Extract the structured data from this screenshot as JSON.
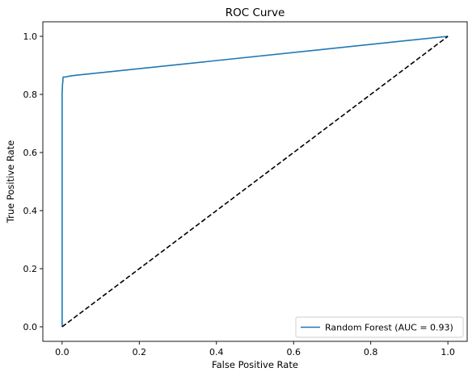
{
  "chart_data": {
    "type": "line",
    "title": "ROC Curve",
    "xlabel": "False Positive Rate",
    "ylabel": "True Positive Rate",
    "xlim": [
      -0.05,
      1.05
    ],
    "ylim": [
      -0.05,
      1.05
    ],
    "xticks": [
      0.0,
      0.2,
      0.4,
      0.6,
      0.8,
      1.0
    ],
    "yticks": [
      0.0,
      0.2,
      0.4,
      0.6,
      0.8,
      1.0
    ],
    "xtick_labels": [
      "0.0",
      "0.2",
      "0.4",
      "0.6",
      "0.8",
      "1.0"
    ],
    "ytick_labels": [
      "0.0",
      "0.2",
      "0.4",
      "0.6",
      "0.8",
      "1.0"
    ],
    "grid": false,
    "legend_position": "lower right",
    "series": [
      {
        "name": "Random Forest (AUC = 0.93)",
        "color": "#1f77b4",
        "style": "solid",
        "x": [
          0.0,
          0.0,
          0.0,
          0.001,
          0.002,
          0.002,
          0.003,
          0.005,
          0.01,
          0.015,
          0.03,
          1.0
        ],
        "y": [
          0.0,
          0.6,
          0.8,
          0.835,
          0.845,
          0.855,
          0.86,
          0.86,
          0.86,
          0.862,
          0.865,
          1.0
        ]
      },
      {
        "name": "",
        "color": "#000000",
        "style": "dashed",
        "x": [
          0.0,
          1.0
        ],
        "y": [
          0.0,
          1.0
        ]
      }
    ]
  }
}
